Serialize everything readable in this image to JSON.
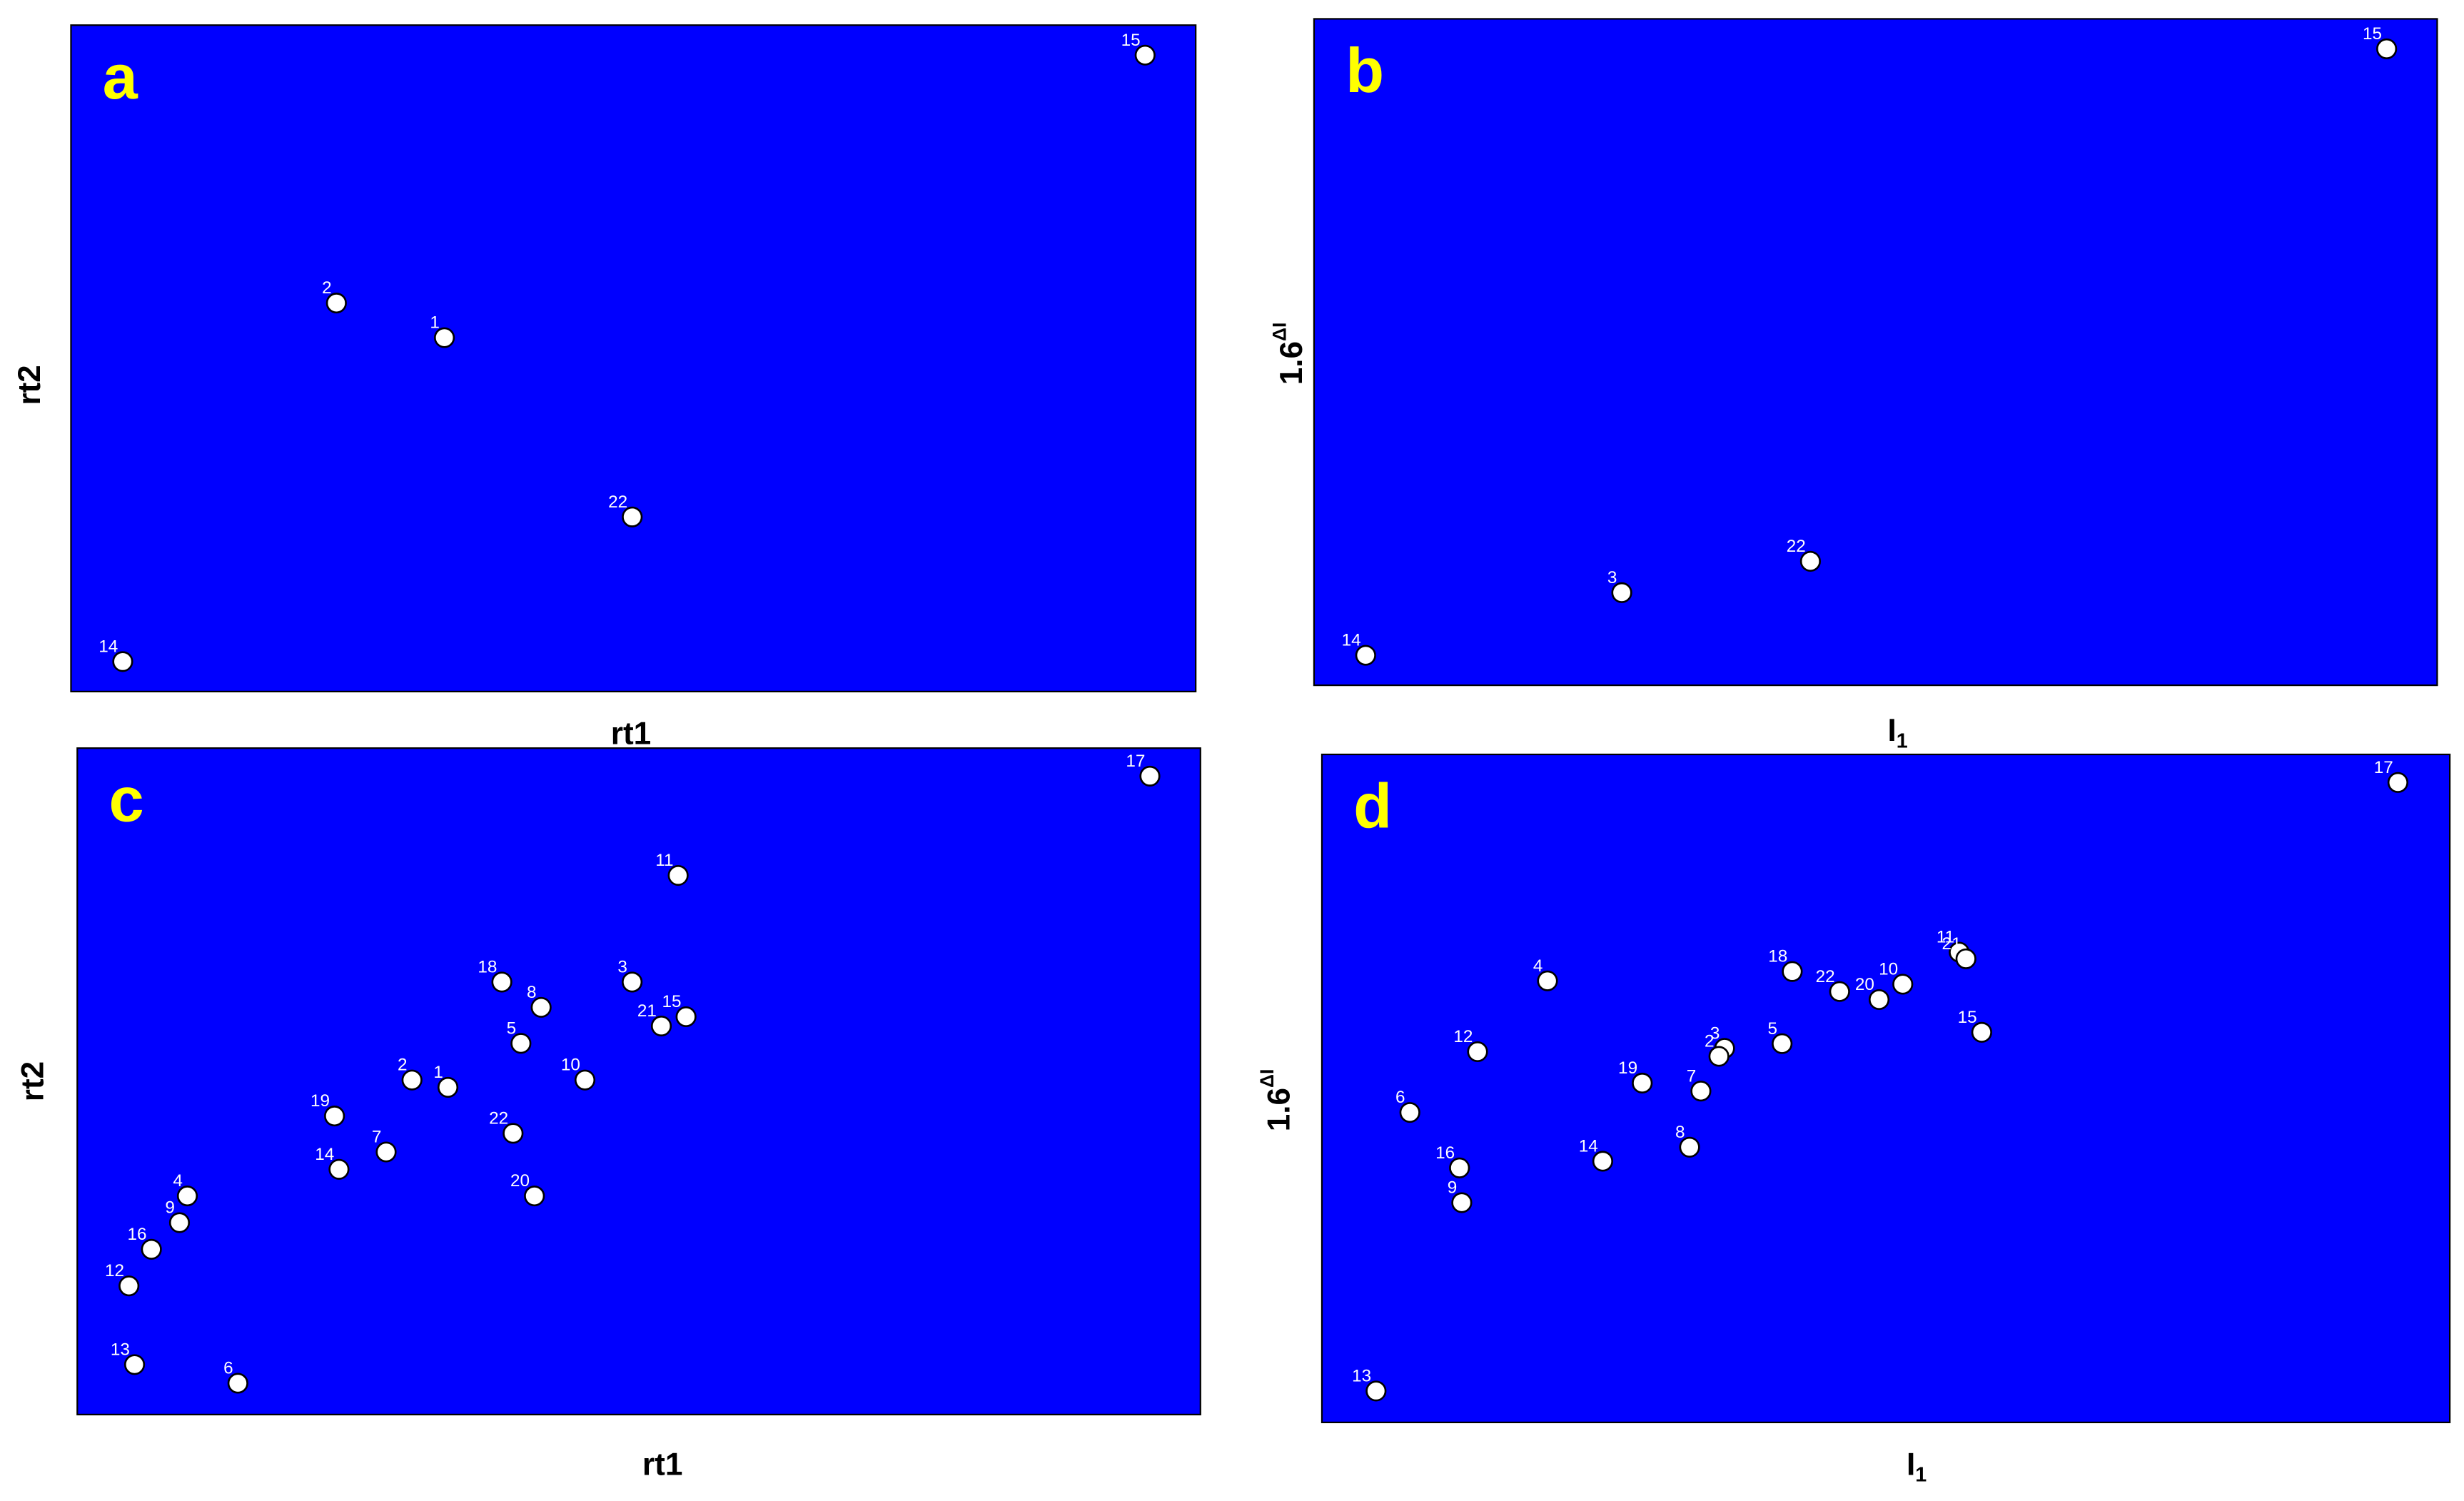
{
  "chart_data": [
    {
      "type": "scatter",
      "panel_label": "a",
      "xlabel": "rt1",
      "ylabel": "rt2",
      "background": "#0000ff",
      "xlim": [
        0,
        100
      ],
      "ylim": [
        0,
        100
      ],
      "series": [
        {
          "color": "#ffffff",
          "point_labels": [
            "15",
            "2",
            "1",
            "22",
            "14"
          ],
          "x": [
            95.5,
            23.6,
            33.2,
            49.9,
            4.6
          ],
          "values": [
            95.5,
            58.3,
            53.1,
            26.2,
            4.5
          ]
        }
      ]
    },
    {
      "type": "scatter",
      "panel_label": "b",
      "xlabel": "I",
      "xlabel_subscript": "1",
      "ylabel": "1.6",
      "ylabel_superscript": "ΔI",
      "background": "#0000ff",
      "xlim": [
        0,
        100
      ],
      "ylim": [
        0,
        100
      ],
      "series": [
        {
          "color": "#ffffff",
          "point_labels": [
            "15",
            "3",
            "22",
            "14"
          ],
          "x": [
            95.5,
            27.4,
            44.2,
            4.6
          ],
          "values": [
            95.5,
            13.9,
            18.6,
            4.5
          ]
        }
      ]
    },
    {
      "type": "scatter",
      "panel_label": "c",
      "xlabel": "rt1",
      "ylabel": "rt2",
      "background": "#0000ff",
      "xlim": [
        0,
        100
      ],
      "ylim": [
        0,
        100
      ],
      "series": [
        {
          "color": "#ffffff",
          "point_labels": [
            "17",
            "11",
            "18",
            "8",
            "3",
            "21",
            "15",
            "5",
            "10",
            "2",
            "1",
            "19",
            "22",
            "7",
            "14",
            "20",
            "4",
            "9",
            "16",
            "12",
            "13",
            "6"
          ],
          "x": [
            95.5,
            53.5,
            37.8,
            41.3,
            49.4,
            52.0,
            54.2,
            39.5,
            45.2,
            29.8,
            33.0,
            22.9,
            38.8,
            27.5,
            23.3,
            40.7,
            9.8,
            9.1,
            6.6,
            4.6,
            5.1,
            14.3
          ],
          "values": [
            95.8,
            80.9,
            64.9,
            61.1,
            64.9,
            58.3,
            59.7,
            55.7,
            50.2,
            50.2,
            49.1,
            44.8,
            42.2,
            39.4,
            36.8,
            32.8,
            32.8,
            28.8,
            24.8,
            19.3,
            7.5,
            4.7
          ]
        }
      ]
    },
    {
      "type": "scatter",
      "panel_label": "d",
      "xlabel": "I",
      "xlabel_subscript": "1",
      "ylabel": "1.6",
      "ylabel_superscript": "ΔI",
      "background": "#0000ff",
      "xlim": [
        0,
        100
      ],
      "ylim": [
        0,
        100
      ],
      "series": [
        {
          "color": "#ffffff",
          "point_labels": [
            "17",
            "11",
            "21",
            "4",
            "18",
            "22",
            "20",
            "10",
            "15",
            "12",
            "5",
            "3",
            "2",
            "19",
            "7",
            "6",
            "8",
            "14",
            "16",
            "9",
            "13"
          ],
          "x": [
            95.4,
            56.5,
            57.1,
            20.0,
            41.7,
            45.9,
            49.4,
            51.5,
            58.5,
            13.8,
            40.8,
            35.7,
            35.2,
            28.4,
            33.6,
            7.8,
            32.6,
            24.9,
            12.2,
            12.4,
            4.8
          ],
          "values": [
            95.8,
            70.4,
            69.4,
            66.1,
            67.5,
            64.5,
            63.3,
            65.6,
            58.4,
            55.5,
            56.7,
            56.0,
            54.8,
            50.8,
            49.6,
            46.4,
            41.2,
            39.1,
            38.1,
            32.9,
            4.7
          ]
        }
      ]
    }
  ]
}
